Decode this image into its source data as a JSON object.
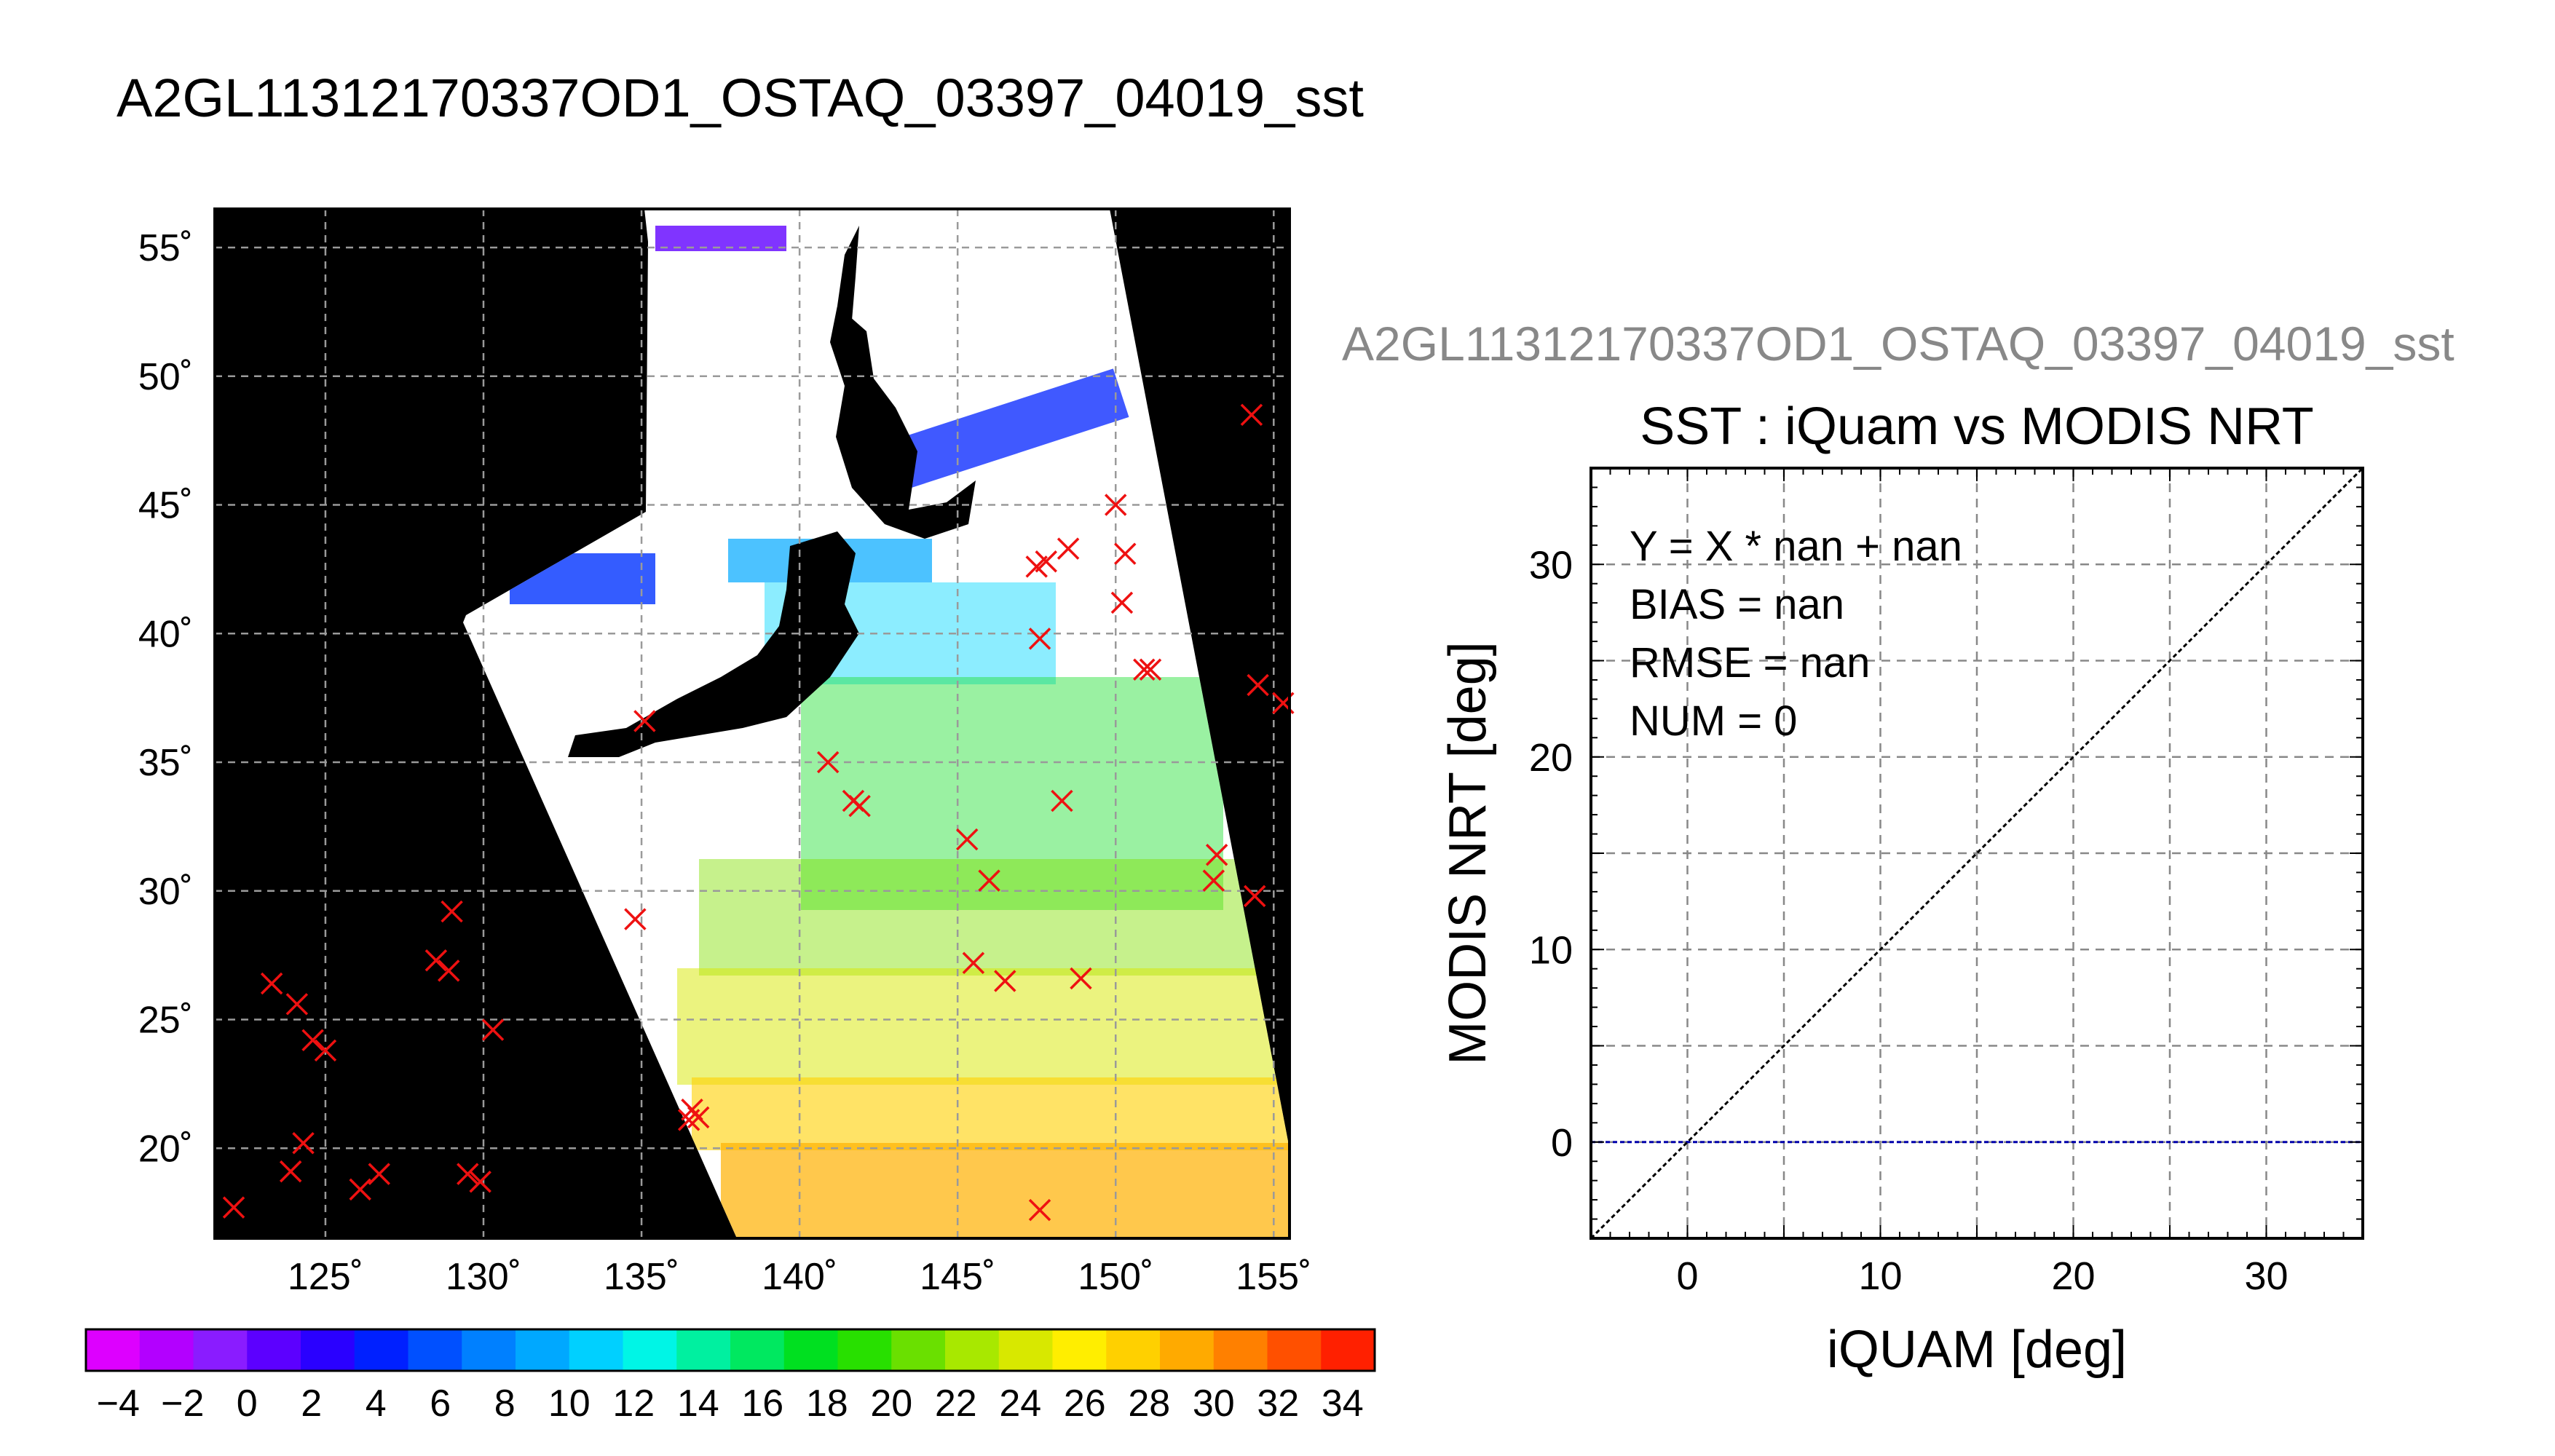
{
  "figure_title": "A2GL11312170337OD1_OSTAQ_03397_04019_sst",
  "chart_data": [
    {
      "type": "scatter",
      "kind": "map",
      "lon_range": [
        121.5,
        155.5
      ],
      "lat_range": [
        16.5,
        56.5
      ],
      "grid": true,
      "lon_ticks": [
        125,
        130,
        135,
        140,
        145,
        150,
        155
      ],
      "lat_ticks": [
        20,
        25,
        30,
        35,
        40,
        45,
        50,
        55
      ],
      "lon_tick_labels": [
        "125˚",
        "130˚",
        "135˚",
        "140˚",
        "145˚",
        "150˚",
        "155˚"
      ],
      "lat_tick_labels": [
        "20˚",
        "25˚",
        "30˚",
        "35˚",
        "40˚",
        "45˚",
        "50˚",
        "55˚"
      ],
      "marker_color": "#ee1111",
      "markers": [
        [
          154.3,
          48.5
        ],
        [
          150.0,
          45.0
        ],
        [
          148.5,
          43.3
        ],
        [
          147.8,
          42.8
        ],
        [
          147.5,
          42.6
        ],
        [
          150.3,
          43.1
        ],
        [
          150.2,
          41.2
        ],
        [
          147.6,
          39.8
        ],
        [
          150.9,
          38.6
        ],
        [
          151.1,
          38.6
        ],
        [
          154.5,
          38.0
        ],
        [
          155.3,
          37.3
        ],
        [
          135.1,
          36.6
        ],
        [
          140.9,
          35.0
        ],
        [
          141.7,
          33.5
        ],
        [
          141.9,
          33.3
        ],
        [
          148.3,
          33.5
        ],
        [
          145.3,
          32.0
        ],
        [
          146.0,
          30.4
        ],
        [
          153.2,
          31.4
        ],
        [
          153.1,
          30.4
        ],
        [
          154.4,
          29.8
        ],
        [
          134.8,
          28.9
        ],
        [
          145.5,
          27.2
        ],
        [
          146.5,
          26.5
        ],
        [
          148.9,
          26.6
        ],
        [
          123.3,
          26.4
        ],
        [
          124.1,
          25.6
        ],
        [
          124.6,
          24.2
        ],
        [
          125.0,
          23.8
        ],
        [
          128.5,
          27.3
        ],
        [
          128.9,
          26.9
        ],
        [
          129.0,
          29.2
        ],
        [
          130.3,
          24.6
        ],
        [
          136.6,
          21.5
        ],
        [
          136.8,
          21.2
        ],
        [
          136.5,
          21.1
        ],
        [
          124.3,
          20.2
        ],
        [
          123.9,
          19.1
        ],
        [
          126.1,
          18.4
        ],
        [
          126.7,
          19.0
        ],
        [
          129.5,
          19.0
        ],
        [
          129.9,
          18.7
        ],
        [
          122.1,
          17.7
        ],
        [
          147.6,
          17.6
        ]
      ],
      "colorbar": {
        "min": -5,
        "max": 35,
        "step": 2,
        "tick_labels": [
          "−4",
          "−2",
          "0",
          "2",
          "4",
          "6",
          "8",
          "10",
          "12",
          "14",
          "16",
          "18",
          "20",
          "22",
          "24",
          "26",
          "28",
          "30",
          "32",
          "34"
        ],
        "colors": [
          "#dd00ff",
          "#b300ff",
          "#8a1cff",
          "#5c00ff",
          "#2a00ff",
          "#0020ff",
          "#0050ff",
          "#0080ff",
          "#00a8ff",
          "#00d0ff",
          "#00f5e6",
          "#00f0a0",
          "#00e860",
          "#00e020",
          "#28e000",
          "#6ae000",
          "#a8e800",
          "#d8e800",
          "#ffee00",
          "#ffd000",
          "#ffaa00",
          "#ff8000",
          "#ff5000",
          "#ff2000"
        ]
      }
    },
    {
      "type": "scatter",
      "title": "SST : iQuam vs MODIS NRT",
      "subtitle": "A2GL11312170337OD1_OSTAQ_03397_04019_sst",
      "xlabel": "iQUAM [deg]",
      "ylabel": "MODIS NRT [deg]",
      "xlim": [
        -5,
        35
      ],
      "ylim": [
        -5,
        35
      ],
      "xticks": [
        0,
        10,
        20,
        30
      ],
      "yticks": [
        0,
        10,
        20,
        30
      ],
      "grid": true,
      "points": [],
      "identity_line": {
        "x": [
          -5,
          35
        ],
        "y": [
          -5,
          35
        ],
        "color": "#000000"
      },
      "zero_line": {
        "y": 0,
        "color": "#0000aa"
      },
      "stats": [
        "Y = X * nan + nan",
        "BIAS = nan",
        "RMSE = nan",
        "NUM = 0"
      ]
    }
  ]
}
